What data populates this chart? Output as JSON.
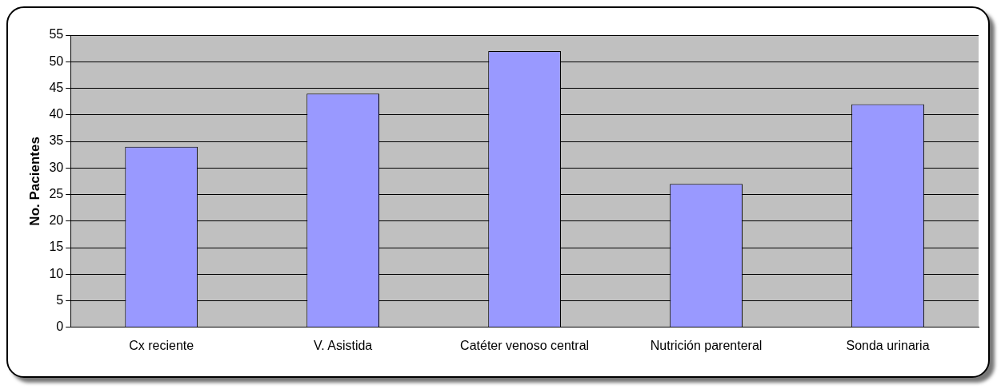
{
  "chart_data": {
    "type": "bar",
    "ylabel": "No. Pacientes",
    "categories": [
      "Cx reciente",
      "V. Asistida",
      "Catéter venoso central",
      "Nutrición parenteral",
      "Sonda urinaria"
    ],
    "values": [
      34,
      44,
      52,
      27,
      42
    ],
    "color": "#9999ff",
    "ylim": [
      0,
      55
    ],
    "yticks": [
      0,
      5,
      10,
      15,
      20,
      25,
      30,
      35,
      40,
      45,
      50,
      55
    ],
    "grid": "y",
    "legend": false
  }
}
